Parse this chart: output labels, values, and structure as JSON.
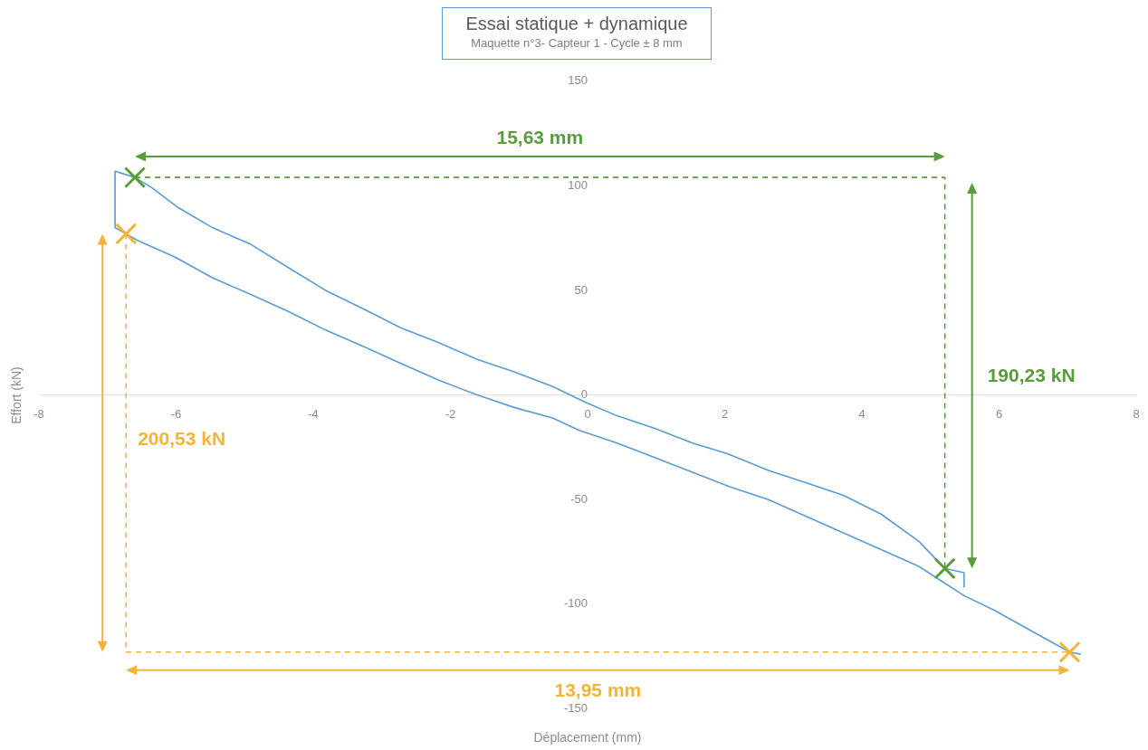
{
  "chart_data": {
    "type": "line",
    "title": "Essai statique + dynamique",
    "subtitle": "Maquette n°3- Capteur 1 - Cycle ± 8 mm",
    "xlabel": "Déplacement (mm)",
    "ylabel": "Effort (kN)",
    "xlim": [
      -8,
      8
    ],
    "xticks": [
      -8,
      -6,
      -4,
      -2,
      0,
      2,
      4,
      6,
      8
    ],
    "ylim": [
      -150,
      150
    ],
    "yticks": [
      -150,
      -100,
      -50,
      0,
      50,
      100,
      150
    ],
    "series": [
      {
        "type": "line",
        "color": "#5b9bd5",
        "x": [
          5.49,
          5.49,
          5.21,
          4.83,
          4.28,
          3.73,
          3.18,
          2.63,
          2.03,
          1.53,
          0.98,
          0.43,
          0,
          -0.51,
          -1.07,
          -1.61,
          -2.17,
          -2.72,
          -3.26,
          -3.82,
          -4.37,
          -4.91,
          -5.47,
          -5.99,
          -6.35,
          -6.6,
          -6.89,
          -6.89,
          -6.73,
          -6.57,
          -6.02,
          -5.47,
          -4.91,
          -4.37,
          -3.82,
          -3.26,
          -2.72,
          -2.17,
          -1.61,
          -1.07,
          -0.51,
          -0.12,
          0.43,
          0.98,
          1.53,
          2.08,
          2.63,
          3.18,
          3.73,
          4.28,
          4.83,
          5.16,
          5.49,
          5.93,
          6.48,
          7.03,
          7.19
        ],
        "values": [
          -92,
          -85,
          -83,
          -70,
          -57,
          -48,
          -42,
          -36,
          -28,
          -23,
          -16,
          -10,
          -4,
          4,
          11,
          17,
          25,
          32,
          41,
          50,
          61,
          72,
          80,
          90,
          99,
          104,
          107,
          80,
          77,
          74,
          66,
          56,
          48,
          40,
          31,
          23,
          15,
          7,
          0,
          -6,
          -11,
          -17,
          -23,
          -30,
          -37,
          -44,
          -50,
          -58,
          -66,
          -74,
          -82,
          -89,
          -96,
          -103,
          -113,
          -123,
          -124
        ]
      },
      {
        "type": "line",
        "line_style": "dashed",
        "color": "#5a9b3c",
        "x": [
          -6.6,
          5.21,
          5.21
        ],
        "values": [
          104,
          104,
          -83
        ]
      },
      {
        "type": "line",
        "line_style": "dashed",
        "color": "#f4b43a",
        "x": [
          -6.73,
          -6.73,
          7.03
        ],
        "values": [
          77,
          -123,
          -123
        ]
      },
      {
        "type": "scatter",
        "marker": "cross",
        "color": "#5a9b3c",
        "x": [
          -6.6,
          5.21
        ],
        "values": [
          104,
          -83
        ]
      },
      {
        "type": "scatter",
        "marker": "cross",
        "color": "#f4b43a",
        "x": [
          -6.73,
          7.03
        ],
        "values": [
          77,
          -123
        ]
      }
    ],
    "annotations": [
      "15,63 mm",
      "190,23 kN",
      "200,53 kN",
      "13,95 mm"
    ]
  }
}
